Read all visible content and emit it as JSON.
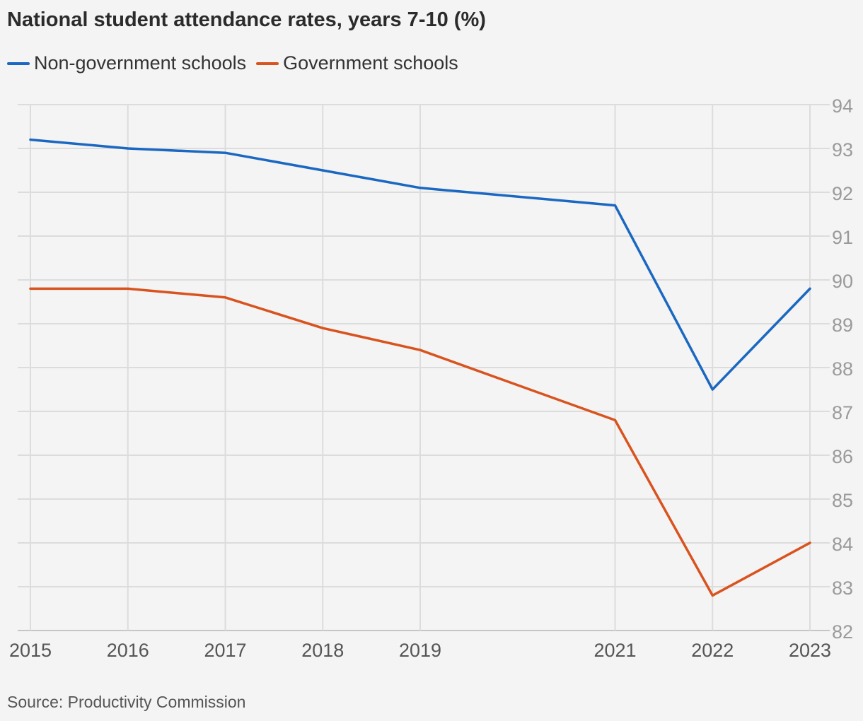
{
  "title": "National student attendance rates, years 7-10 (%)",
  "source": "Source: Productivity Commission",
  "chart_data": {
    "type": "line",
    "title": "National student attendance rates, years 7-10 (%)",
    "xlabel": "",
    "ylabel": "",
    "x": [
      2015,
      2016,
      2017,
      2018,
      2019,
      2021,
      2022,
      2023
    ],
    "x_ticks": [
      2015,
      2016,
      2017,
      2018,
      2019,
      2021,
      2022,
      2023
    ],
    "ylim": [
      82,
      94
    ],
    "y_ticks": [
      82,
      83,
      84,
      85,
      86,
      87,
      88,
      89,
      90,
      91,
      92,
      93,
      94
    ],
    "y_axis_side": "right",
    "grid": true,
    "legend_position": "top-left",
    "series": [
      {
        "name": "Non-government schools",
        "color": "#1a68c1",
        "values": [
          93.2,
          93.0,
          92.9,
          92.5,
          92.1,
          91.7,
          87.5,
          89.8
        ]
      },
      {
        "name": "Government schools",
        "color": "#d9531e",
        "values": [
          89.8,
          89.8,
          89.6,
          88.9,
          88.4,
          86.8,
          82.8,
          84.0
        ]
      }
    ]
  }
}
